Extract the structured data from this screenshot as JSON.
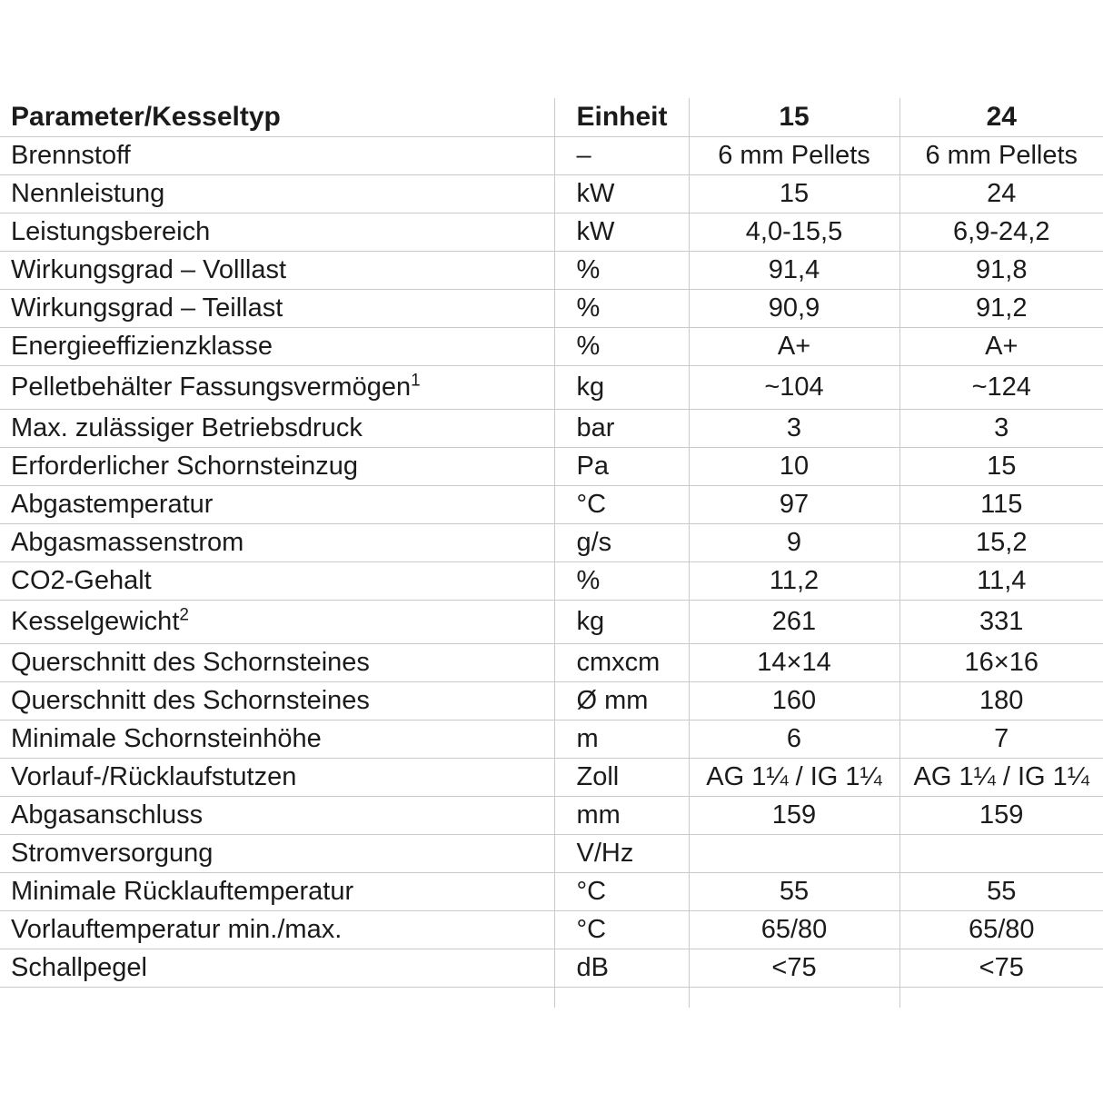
{
  "colors": {
    "border": "#c9c9c9",
    "text": "#1b1b1b",
    "background": "#ffffff"
  },
  "table": {
    "columns": {
      "param": "Parameter/Kesseltyp",
      "unit": "Einheit",
      "model15": "15",
      "model24": "24"
    },
    "rows": [
      {
        "param": "Brennstoff",
        "unit": "–",
        "v15": "6 mm Pellets",
        "v24": "6 mm Pellets"
      },
      {
        "param": "Nennleistung",
        "unit": "kW",
        "v15": "15",
        "v24": "24"
      },
      {
        "param": "Leistungsbereich",
        "unit": "kW",
        "v15": "4,0-15,5",
        "v24": "6,9-24,2"
      },
      {
        "param": "Wirkungsgrad – Volllast",
        "unit": "%",
        "v15": "91,4",
        "v24": "91,8"
      },
      {
        "param": "Wirkungsgrad – Teillast",
        "unit": "%",
        "v15": "90,9",
        "v24": "91,2"
      },
      {
        "param": "Energieeffizienzklasse",
        "unit": "%",
        "v15": "A+",
        "v24": "A+"
      },
      {
        "param": "Pelletbehälter Fassungsvermögen",
        "sup": "1",
        "unit": "kg",
        "v15": "~104",
        "v24": "~124"
      },
      {
        "param": "Max. zulässiger Betriebsdruck",
        "unit": "bar",
        "v15": "3",
        "v24": "3"
      },
      {
        "param": "Erforderlicher Schornsteinzug",
        "unit": "Pa",
        "v15": "10",
        "v24": "15"
      },
      {
        "param": "Abgastemperatur",
        "unit": "°C",
        "v15": "97",
        "v24": "115"
      },
      {
        "param": "Abgasmassenstrom",
        "unit": "g/s",
        "v15": "9",
        "v24": "15,2"
      },
      {
        "param": "CO2-Gehalt",
        "unit": "%",
        "v15": "11,2",
        "v24": "11,4"
      },
      {
        "param": "Kesselgewicht",
        "sup": "2",
        "unit": "kg",
        "v15": "261",
        "v24": "331"
      },
      {
        "param": "Querschnitt des Schornsteines",
        "unit": "cmxcm",
        "v15": "14×14",
        "v24": "16×16"
      },
      {
        "param": "Querschnitt des Schornsteines",
        "unit": "Ø mm",
        "v15": "160",
        "v24": "180"
      },
      {
        "param": "Minimale Schornsteinhöhe",
        "unit": "m",
        "v15": "6",
        "v24": "7"
      },
      {
        "param": "Vorlauf-/Rücklaufstutzen",
        "unit": "Zoll",
        "v15": "AG 1¼ / IG 1¼",
        "v24": "AG 1¼ / IG 1¼"
      },
      {
        "param": "Abgasanschluss",
        "unit": "mm",
        "v15": "159",
        "v24": "159"
      },
      {
        "param": "Stromversorgung",
        "unit": "V/Hz",
        "v15": "",
        "v24": ""
      },
      {
        "param": "Minimale Rücklauftemperatur",
        "unit": "°C",
        "v15": "55",
        "v24": "55"
      },
      {
        "param": "Vorlauftemperatur min./max.",
        "unit": "°C",
        "v15": "65/80",
        "v24": "65/80"
      },
      {
        "param": "Schallpegel",
        "unit": "dB",
        "v15": "<75",
        "v24": "<75"
      }
    ]
  }
}
